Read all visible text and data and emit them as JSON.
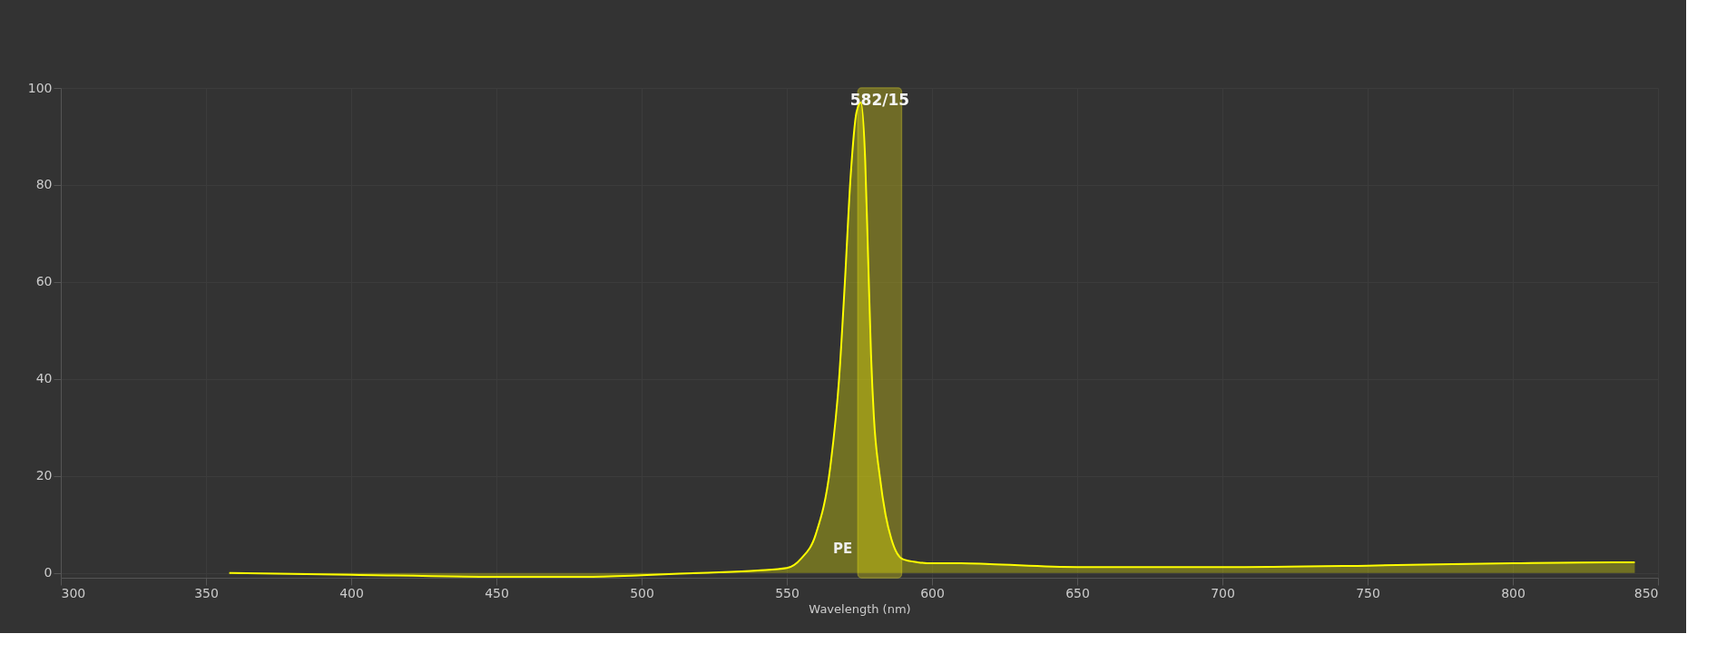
{
  "chart_data": {
    "type": "area",
    "xlabel": "Wavelength (nm)",
    "xlim": [
      300,
      850
    ],
    "xticks": [
      300,
      350,
      400,
      450,
      500,
      550,
      600,
      650,
      700,
      750,
      800,
      850
    ],
    "ylim": [
      -1,
      100
    ],
    "yticks": [
      0,
      20,
      40,
      60,
      80,
      100
    ],
    "grid": true,
    "series": [
      {
        "name": "PE",
        "color": "#ffff00",
        "x": [
          358,
          400,
          450,
          480,
          500,
          520,
          540,
          550,
          555,
          560,
          565,
          568,
          570,
          572,
          574,
          575.5,
          577,
          578,
          579,
          580,
          582,
          584,
          586,
          588,
          590,
          595,
          600,
          610,
          620,
          650,
          700,
          750,
          800,
          835,
          842
        ],
        "values": [
          0,
          -0.4,
          -0.8,
          -0.8,
          -0.5,
          0,
          0.5,
          1,
          3,
          8,
          22,
          40,
          60,
          82,
          95,
          97,
          85,
          65,
          45,
          32,
          20,
          12,
          7,
          4,
          2.8,
          2.2,
          2,
          2,
          1.8,
          1.2,
          1.2,
          1.5,
          2,
          2.2,
          2.2
        ]
      }
    ],
    "bands": [
      {
        "axis": "x",
        "from": 574.5,
        "to": 589.5,
        "label": "582/15",
        "color": "#a09a1e"
      }
    ]
  }
}
